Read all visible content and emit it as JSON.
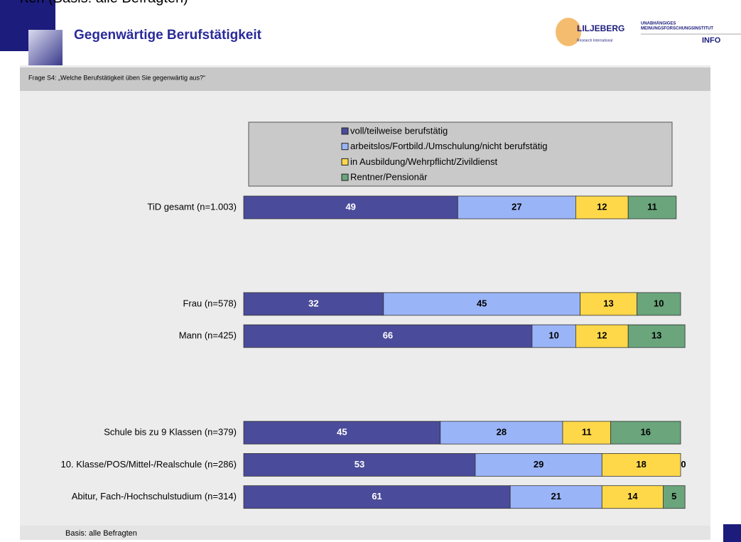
{
  "header_fragment": "rten  (Basis: alle Befragten)",
  "logos": {
    "left_name": "LILJEBERG",
    "left_sub": "Research International",
    "right_line1": "UNABHÄNGIGES",
    "right_line2": "MEINUNGSFORSCHUNGSINSTITUT",
    "right_name": "INFO"
  },
  "footer": "Basis: alle Befragten",
  "chart_data": {
    "type": "stacked-hbar",
    "title": "Gegenwärtige Berufstätigkeit",
    "subtitle": "Frage  S4:  „Welche Berufstätigkeit üben Sie gegenwärtig aus?“",
    "categories": [
      "TiD gesamt (n=1.003)",
      null,
      null,
      "Frau (n=578)",
      "Mann (n=425)",
      null,
      null,
      "Schule bis zu 9 Klassen (n=379)",
      "10. Klasse/POS/Mittel-/Realschule (n=286)",
      "Abitur, Fach-/Hochschulstudium (n=314)"
    ],
    "xlim": [
      0,
      100
    ],
    "series": [
      {
        "name": "voll/teilweise berufstätig",
        "color": "#4b4b9b",
        "values": [
          49,
          null,
          null,
          32,
          66,
          null,
          null,
          45,
          53,
          61
        ]
      },
      {
        "name": "arbeitslos/Fortbild./Umschulung/nicht berufstätig",
        "color": "#9ab4f8",
        "values": [
          27,
          null,
          null,
          45,
          10,
          null,
          null,
          28,
          29,
          21
        ]
      },
      {
        "name": "in Ausbildung/Wehrpflicht/Zivildienst",
        "color": "#ffd84a",
        "values": [
          12,
          null,
          null,
          13,
          12,
          null,
          null,
          11,
          18,
          14
        ]
      },
      {
        "name": "Rentner/Pensionär",
        "color": "#6aa57c",
        "values": [
          11,
          null,
          null,
          10,
          13,
          null,
          null,
          16,
          0,
          5
        ]
      }
    ]
  }
}
